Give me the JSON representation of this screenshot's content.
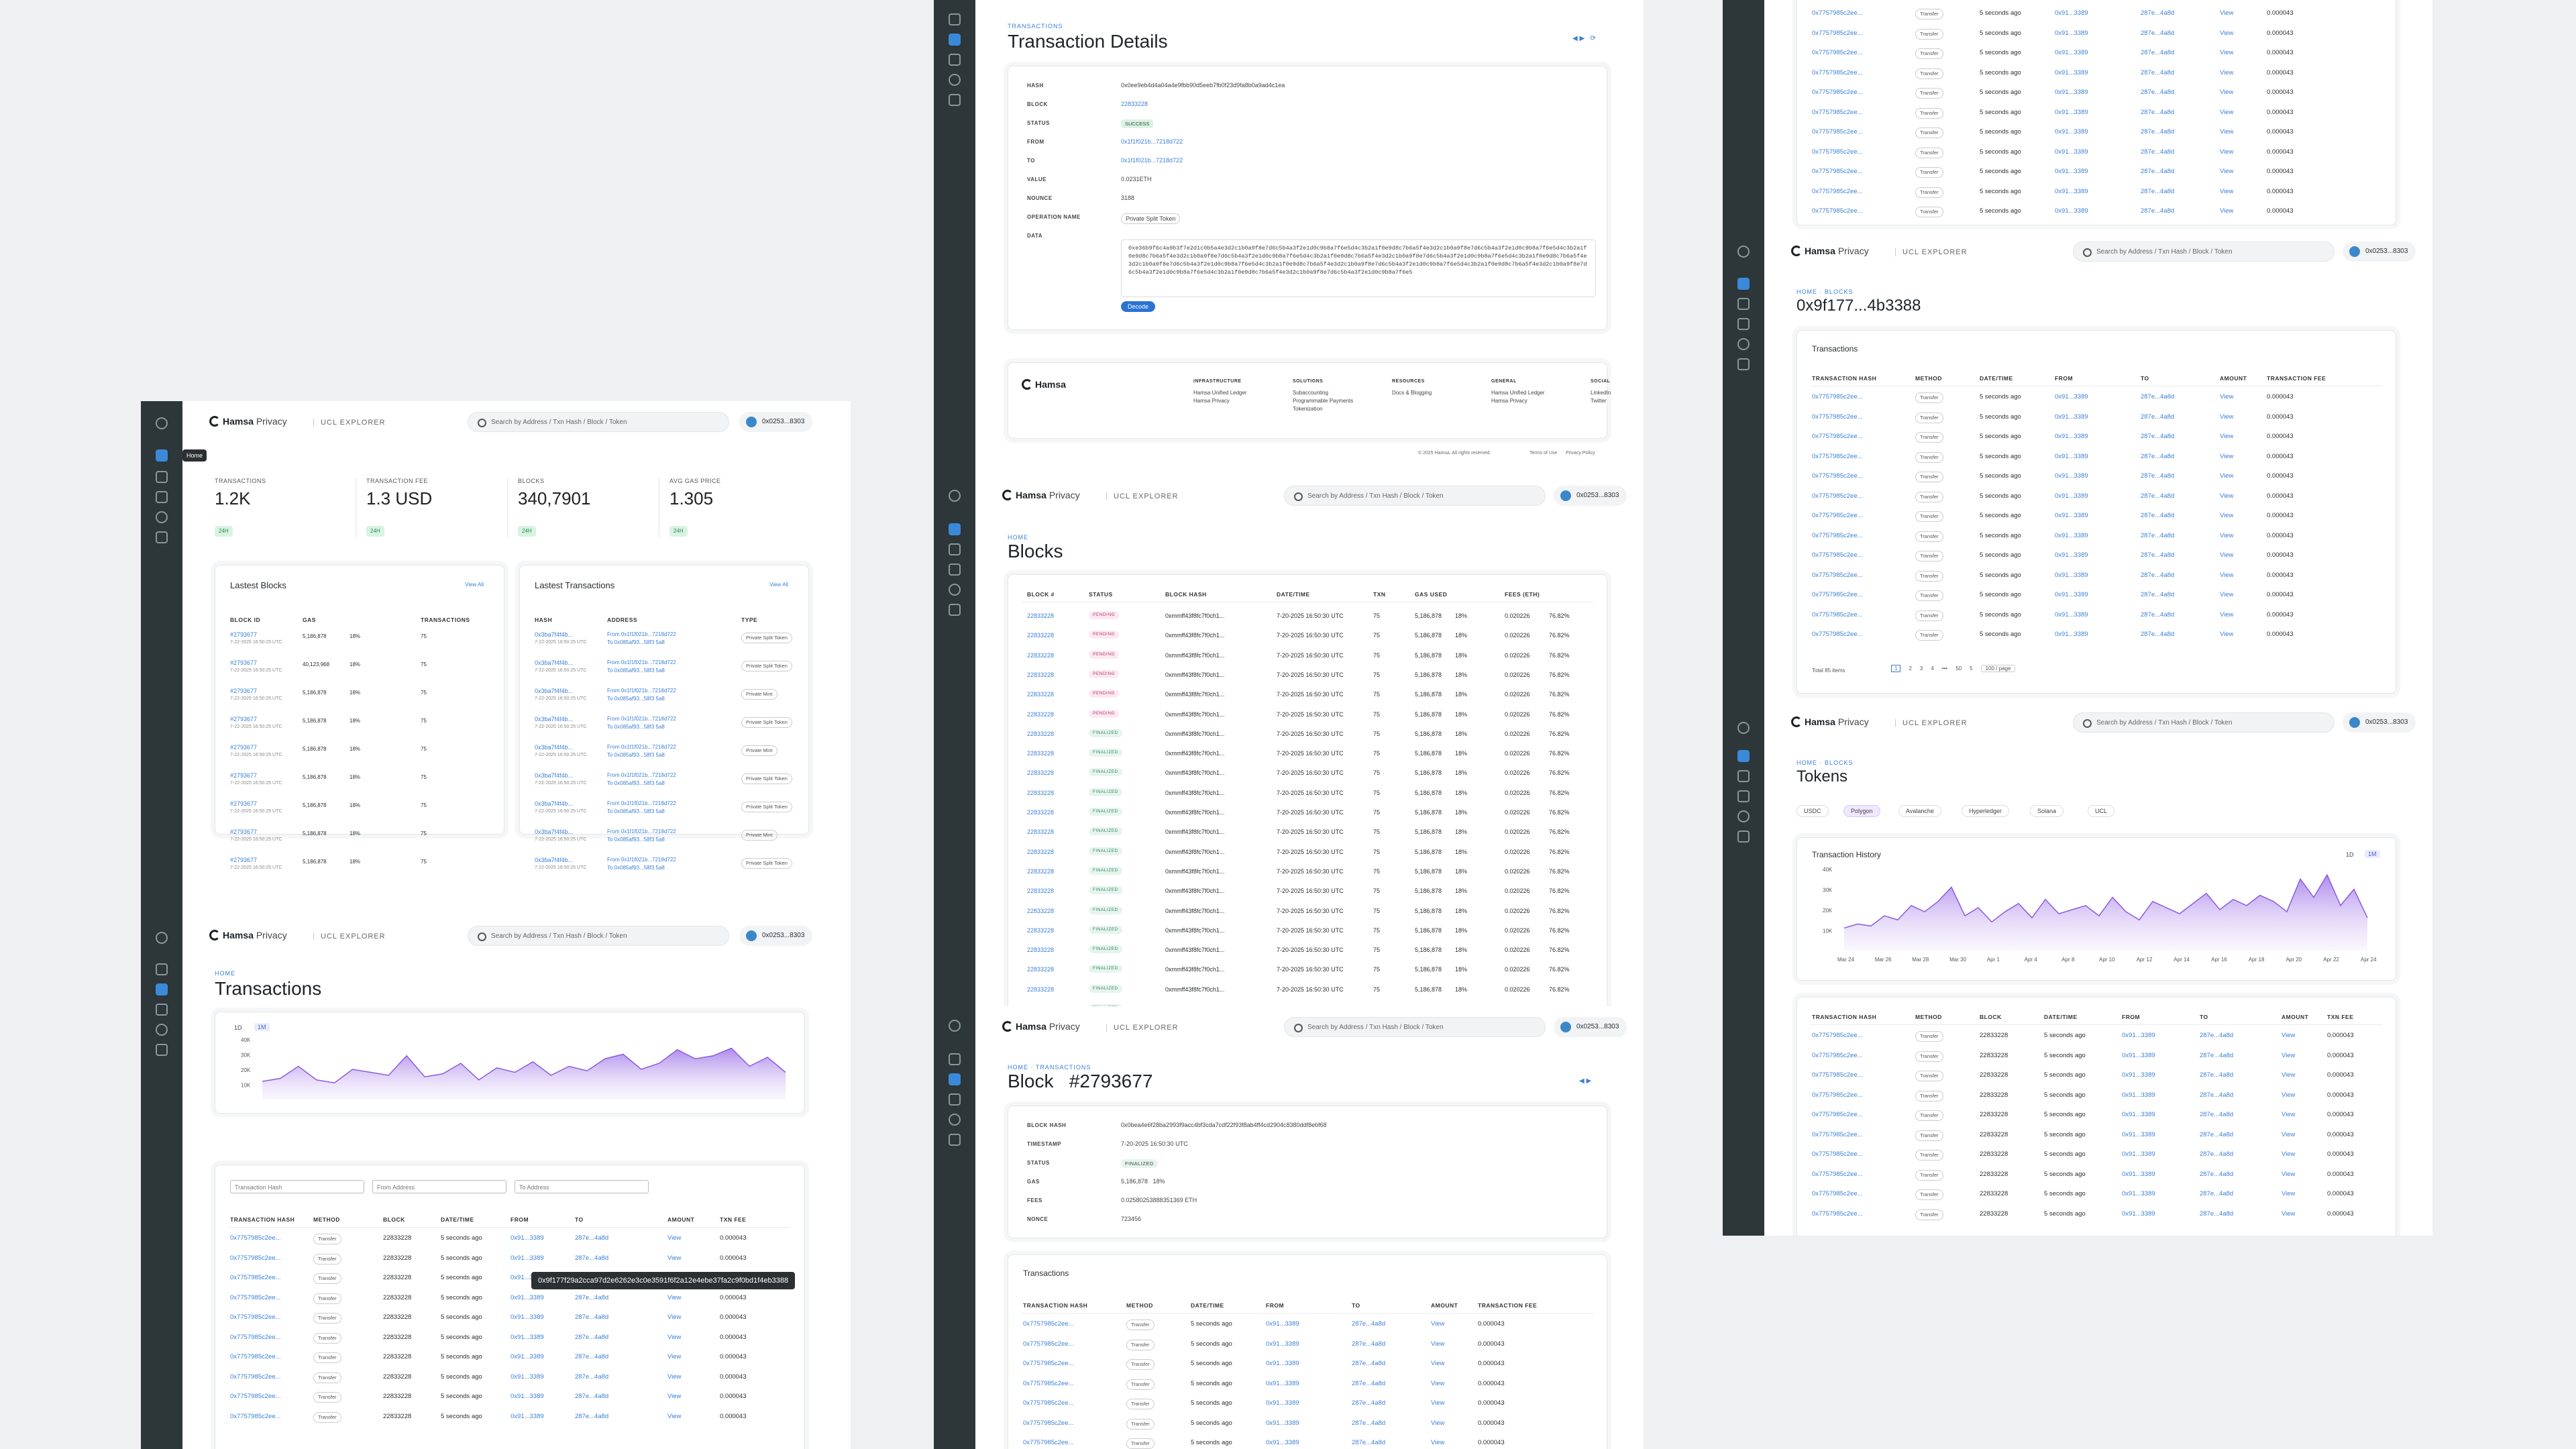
{
  "app": {
    "brand": "Hamsa",
    "brand_suffix": "Privacy",
    "explorer": "UCL EXPLORER",
    "search_placeholder": "Search by Address / Txn Hash / Block / Token",
    "wallet": "0x0253...8303",
    "tooltip_home": "Home"
  },
  "dashboard": {
    "stats": [
      {
        "label": "TRANSACTIONS",
        "value": "1.2K",
        "tag": "24H"
      },
      {
        "label": "TRANSACTION FEE",
        "value": "1.3 USD",
        "tag": "24H"
      },
      {
        "label": "BLOCKS",
        "value": "340,7901",
        "tag": "24H"
      },
      {
        "label": "AVG GAS PRICE",
        "value": "1.305",
        "tag": "24H"
      }
    ],
    "latest_blocks": {
      "title": "Lastest Blocks",
      "view_all": "View All",
      "cols": [
        "BLOCK ID",
        "GAS",
        "",
        "TRANSACTIONS"
      ],
      "rows": [
        {
          "id": "#2793677",
          "time": "7-22-2025 16:50:25 UTC",
          "gas": "5,186,878",
          "pct": "18%",
          "txn": "75"
        },
        {
          "id": "#2793677",
          "time": "7-22-2025 16:50:25 UTC",
          "gas": "40,123,968",
          "pct": "18%",
          "txn": "75"
        },
        {
          "id": "#2793677",
          "time": "7-22-2025 16:50:25 UTC",
          "gas": "5,186,878",
          "pct": "18%",
          "txn": "75"
        },
        {
          "id": "#2793677",
          "time": "7-22-2025 16:50:25 UTC",
          "gas": "5,186,878",
          "pct": "18%",
          "txn": "75"
        },
        {
          "id": "#2793677",
          "time": "7-22-2025 16:50:25 UTC",
          "gas": "5,186,878",
          "pct": "18%",
          "txn": "75"
        },
        {
          "id": "#2793677",
          "time": "7-22-2025 16:50:25 UTC",
          "gas": "5,186,878",
          "pct": "18%",
          "txn": "75"
        },
        {
          "id": "#2793677",
          "time": "7-22-2025 16:50:25 UTC",
          "gas": "5,186,878",
          "pct": "18%",
          "txn": "75"
        },
        {
          "id": "#2793677",
          "time": "7-22-2025 16:50:25 UTC",
          "gas": "5,186,878",
          "pct": "18%",
          "txn": "75"
        },
        {
          "id": "#2793677",
          "time": "7-22-2025 16:50:25 UTC",
          "gas": "5,186,878",
          "pct": "18%",
          "txn": "75"
        }
      ]
    },
    "latest_txns": {
      "title": "Lastest Transactions",
      "view_all": "View All",
      "cols": [
        "HASH",
        "ADDRESS",
        "TYPE"
      ],
      "rows": [
        {
          "hash": "0x3ba7f4f4b...",
          "time": "7-22-2025 16:50:25 UTC",
          "from": "From 0x1f1f021b...7218d722",
          "to": "To 0x085af93...58f3 5a8",
          "type": "Private Split Token"
        },
        {
          "hash": "0x3ba7f4f4b...",
          "time": "7-22-2025 16:50:25 UTC",
          "from": "From 0x1f1f021b...7218d722",
          "to": "To 0x085af93...58f3 5a8",
          "type": "Private Split Token"
        },
        {
          "hash": "0x3ba7f4f4b...",
          "time": "7-22-2025 16:50:25 UTC",
          "from": "From 0x1f1f021b...7218d722",
          "to": "To 0x085af93...58f3 5a8",
          "type": "Private Mint"
        },
        {
          "hash": "0x3ba7f4f4b...",
          "time": "7-22-2025 16:50:25 UTC",
          "from": "From 0x1f1f021b...7218d722",
          "to": "To 0x085af93...58f3 5a8",
          "type": "Private Split Token"
        },
        {
          "hash": "0x3ba7f4f4b...",
          "time": "7-22-2025 16:50:25 UTC",
          "from": "From 0x1f1f021b...7218d722",
          "to": "To 0x085af93...58f3 5a8",
          "type": "Private Mint"
        },
        {
          "hash": "0x3ba7f4f4b...",
          "time": "7-22-2025 16:50:25 UTC",
          "from": "From 0x1f1f021b...7218d722",
          "to": "To 0x085af93...58f3 5a8",
          "type": "Private Split Token"
        },
        {
          "hash": "0x3ba7f4f4b...",
          "time": "7-22-2025 16:50:25 UTC",
          "from": "From 0x1f1f021b...7218d722",
          "to": "To 0x085af93...58f3 5a8",
          "type": "Private Split Token"
        },
        {
          "hash": "0x3ba7f4f4b...",
          "time": "7-22-2025 16:50:25 UTC",
          "from": "From 0x1f1f021b...7218d722",
          "to": "To 0x085af93...58f3 5a8",
          "type": "Private Mint"
        },
        {
          "hash": "0x3ba7f4f4b...",
          "time": "7-22-2025 16:50:25 UTC",
          "from": "From 0x1f1f021b...7218d722",
          "to": "To 0x085af93...58f3 5a8",
          "type": "Private Split Token"
        }
      ]
    }
  },
  "txpage": {
    "crumb": "HOME",
    "title": "Transactions",
    "range": [
      "1D",
      "1M"
    ],
    "filters": [
      "Transaction Hash",
      "From Address",
      "To Address"
    ],
    "cols": [
      "TRANSACTION HASH",
      "METHOD",
      "BLOCK",
      "DATE/TIME",
      "FROM",
      "TO",
      "AMOUNT",
      "TXN FEE"
    ],
    "row": {
      "hash": "0x7757985c2ee...",
      "method": "Transfer",
      "block": "22833228",
      "time": "5 seconds ago",
      "from": "0x91...3389",
      "to": "287e...4a8d",
      "amount": "View",
      "fee": "0.000043"
    },
    "tooltip": "0x9f177f29a2cca97d2e6262e3c0e3591f6f2a12e4ebe37fa2c9f0bd1f4eb3388"
  },
  "txdetails": {
    "crumb": "TRANSACTIONS",
    "title": "Transaction Details",
    "fields": [
      {
        "k": "HASH",
        "v": "0x0ee9eb4d4a04a4e9fbb90d5eeb7fb0f23d9fa8b0a9ad4c1ea"
      },
      {
        "k": "BLOCK",
        "v": "22833228"
      },
      {
        "k": "STATUS",
        "v": "SUCCESS"
      },
      {
        "k": "FROM",
        "v": "0x1f1f021b...7218d722"
      },
      {
        "k": "TO",
        "v": "0x1f1f021b...7218d722"
      },
      {
        "k": "VALUE",
        "v": "0.0231ETH"
      },
      {
        "k": "NOUNCE",
        "v": "3188"
      },
      {
        "k": "OPERATION NAME",
        "v": "Private Split Token"
      },
      {
        "k": "DATA",
        "v": "0xe36b9f6c4a9b3f7e2d1c0b5a4e3d2c1b0a9f8e7d6c5b4a3f2e1d0c9b8a7f6e5d4c3b2a1f0e9d8c7b6a5f4e3d2c1b0a9f8e7d6c5b4a3f2e1d0c9b8a7f6e5d4c3b2a1f0e9d8c7b6a5f4e3d2c1b0a9f8e7d6c5b4a3f2e1d0c9b8a7f6e5d4c3b2a1f0e9d8c7b6a5f4e3d2c1b0a9f8e7d6c5b4a3f2e1d0c9b8a7f6e5d4c3b2a1f0e9d8c7b6a5f4e3d2c1b0a9f8e7d6c5b4a3f2e1d0c9b8a7f6e5d4c3b2a1f0e9d8c7b6a5f4e3d2c1b0a9f8e7d6c5b4a3f2e1d0c9b8a7f6e5d4c3b2a1f0e9d8c7b6a5f4e3d2c1b0a9f8e7d6c5b4a3f2e1d0c9b8a7f6e5d4c3b2a1f0e9d8c7b6a5f4e3d2c1b0a9f8e7d6c5b4a3f2e1d0c9b8a7f6e5"
      }
    ],
    "decode": "Decode",
    "footer": {
      "cols": [
        {
          "h": "INFRASTRUCTURE",
          "items": [
            "Hamsa Unified Ledger",
            "Hamsa Privacy"
          ]
        },
        {
          "h": "SOLUTIONS",
          "items": [
            "Subaccounting",
            "Programmable Payments",
            "Tokenization"
          ]
        },
        {
          "h": "RESOURCES",
          "items": [
            "Docs & Blogging"
          ]
        },
        {
          "h": "GENERAL",
          "items": [
            "Hamsa Unified Ledger",
            "Hamsa Privacy"
          ]
        },
        {
          "h": "SOCIAL",
          "items": [
            "LinkedIn",
            "Twitter"
          ]
        }
      ],
      "copyright": "© 2025 Hamsa. All rights reserved.",
      "terms": "Terms of Use",
      "privacy": "Privacy Policy"
    }
  },
  "blocks": {
    "crumb": "HOME",
    "title": "Blocks",
    "cols": [
      "BLOCK #",
      "STATUS",
      "BLOCK HASH",
      "DATE/TIME",
      "TXN",
      "GAS USED",
      "",
      "FEES (ETH)",
      ""
    ],
    "row": {
      "block": "22833228",
      "hash": "0xmmff43f8fc7f0ch1...",
      "time": "7-20-2025 16:50:30 UTC",
      "txn": "75",
      "gas": "5,186,878",
      "pct": "18%",
      "fee": "0.020226",
      "pct2": "76.82%"
    },
    "statuses": [
      "PENDING",
      "PENDING",
      "PENDING",
      "PENDING",
      "PENDING",
      "PENDING",
      "FINALIZED",
      "FINALIZED",
      "FINALIZED",
      "FINALIZED",
      "FINALIZED",
      "FINALIZED",
      "FINALIZED",
      "FINALIZED",
      "FINALIZED",
      "FINALIZED",
      "FINALIZED",
      "FINALIZED",
      "FINALIZED",
      "FINALIZED",
      "FINALIZED"
    ]
  },
  "block": {
    "crumb": "HOME · TRANSACTIONS",
    "title": "Block",
    "number": "#2793677",
    "fields": [
      {
        "k": "BLOCK HASH",
        "v": "0x0bea4e6f28ba2993f9acc4bf3cda7cdf22f93f8ab4ff4cd2904c8380ddf8ebf68"
      },
      {
        "k": "TIMESTAMP",
        "v": "7-20-2025 16:50:30 UTC"
      },
      {
        "k": "STATUS",
        "v": "FINALIZED"
      },
      {
        "k": "GAS",
        "v": "5,186,878   18%"
      },
      {
        "k": "FEES",
        "v": "0.02580253888351369 ETH"
      },
      {
        "k": "NONCE",
        "v": "723456"
      }
    ],
    "tx_title": "Transactions",
    "cols": [
      "TRANSACTION HASH",
      "METHOD",
      "DATE/TIME",
      "FROM",
      "TO",
      "AMOUNT",
      "TRANSACTION FEE"
    ]
  },
  "address": {
    "crumb": "HOME · BLOCKS",
    "title": "0x9f177...4b3388",
    "tx_title": "Transactions",
    "total": "Total 85 items",
    "pages": [
      "1",
      "2",
      "3",
      "4",
      "•••",
      "50",
      "5"
    ],
    "per_page": "100 / page",
    "cols": [
      "TRANSACTION HASH",
      "METHOD",
      "DATE/TIME",
      "FROM",
      "TO",
      "AMOUNT",
      "TRANSACTION FEE"
    ]
  },
  "tokens": {
    "crumb": "HOME · BLOCKS",
    "title": "Tokens",
    "chips": [
      "USDC",
      "Polygon",
      "Avalanche",
      "Hyperledger",
      "Solana",
      "UCL"
    ],
    "history": "Transaction History",
    "range": [
      "1D",
      "1M"
    ],
    "cols": [
      "TRANSACTION HASH",
      "METHOD",
      "BLOCK",
      "DATE/TIME",
      "FROM",
      "TO",
      "AMOUNT",
      "TXN FEE"
    ]
  },
  "chart_data": [
    {
      "type": "area",
      "title": "",
      "ylabel": "",
      "yticks": [
        "40K",
        "30K",
        "20K",
        "10K"
      ],
      "ylim": [
        0,
        40000
      ],
      "values": [
        12,
        14,
        22,
        13,
        11,
        20,
        18,
        16,
        29,
        15,
        17,
        24,
        13,
        21,
        18,
        25,
        16,
        22,
        19,
        27,
        30,
        20,
        24,
        33,
        27,
        29,
        34,
        22,
        28,
        18
      ]
    },
    {
      "type": "area",
      "title": "Transaction History",
      "ylabel": "",
      "yticks": [
        "40K",
        "30K",
        "20K",
        "10K"
      ],
      "ylim": [
        0,
        40000
      ],
      "xticks": [
        "Mar 24",
        "Mar 26",
        "Mar 28",
        "Mar 30",
        "Apr 1",
        "Apr 4",
        "Apr 8",
        "Apr 10",
        "Apr 12",
        "Apr 14",
        "Apr 16",
        "Apr 18",
        "Apr 20",
        "Apr 22",
        "Apr 24"
      ],
      "values": [
        11,
        13,
        12,
        17,
        15,
        22,
        19,
        24,
        31,
        17,
        21,
        14,
        19,
        23,
        16,
        25,
        18,
        20,
        22,
        17,
        26,
        19,
        15,
        24,
        21,
        18,
        23,
        28,
        20,
        25,
        22,
        27,
        24,
        19,
        35,
        26,
        37,
        22,
        30,
        16
      ]
    }
  ]
}
